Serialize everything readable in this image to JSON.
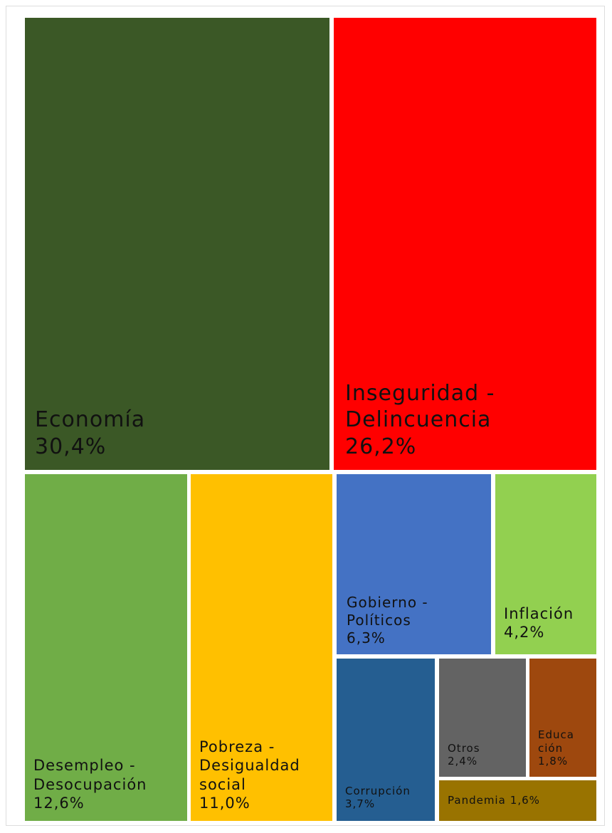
{
  "chart_data": {
    "type": "treemap",
    "categories": [
      "Economía",
      "Inseguridad - Delincuencia",
      "Desempleo - Desocupación",
      "Pobreza - Desigualdad social",
      "Gobierno - Políticos",
      "Inflación",
      "Corrupción",
      "Otros",
      "Educación",
      "Pandemia"
    ],
    "values": [
      30.4,
      26.2,
      12.6,
      11.0,
      6.3,
      4.2,
      3.7,
      2.4,
      1.8,
      1.6
    ],
    "value_labels": [
      "30,4%",
      "26,2%",
      "12,6%",
      "11,0%",
      "6,3%",
      "4,2%",
      "3,7%",
      "2,4%",
      "1,8%",
      "1,6%"
    ],
    "colors": [
      "#3b5826",
      "#ff0000",
      "#70ad47",
      "#ffc000",
      "#4472c4",
      "#92d050",
      "#255e91",
      "#636363",
      "#9e480e",
      "#997300"
    ]
  }
}
